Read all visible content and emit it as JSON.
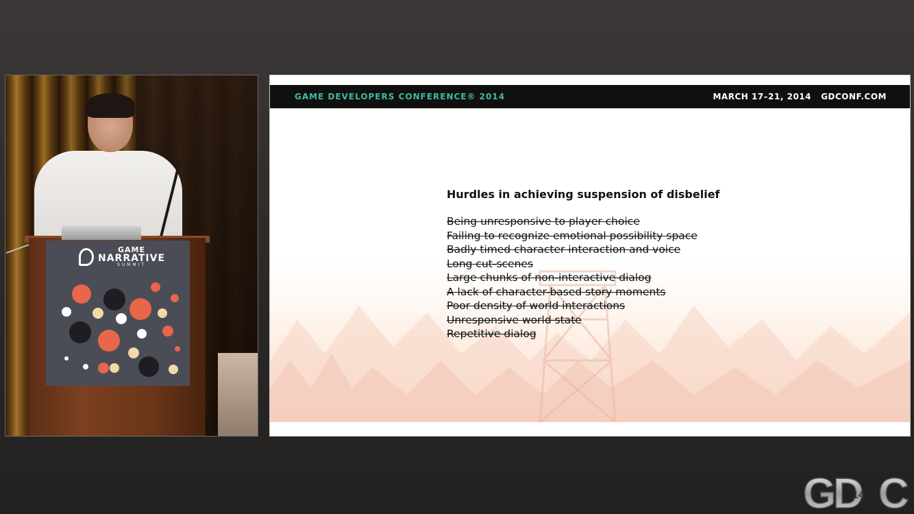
{
  "slide": {
    "header": {
      "conference": "GAME DEVELOPERS CONFERENCE® 2014",
      "dates": "MARCH 17–21, 2014",
      "website": "GDCONF.COM"
    },
    "title": "Hurdles in achieving suspension of disbelief",
    "items": [
      "Being unresponsive to player choice",
      "Failing to recognize emotional possibility space",
      "Badly timed character interaction and voice",
      "Long cut-scenes",
      "Large chunks of non-interactive dialog",
      "A lack of character-based story moments",
      "Poor density of world interactions",
      "Unresponsive world state",
      "Repetitive dialog"
    ]
  },
  "podium_sign": {
    "line1": "GAME",
    "line2": "NARRATIVE",
    "line3": "SUMMIT"
  },
  "watermark": {
    "letters": [
      "G",
      "D",
      "C"
    ],
    "year": "14"
  },
  "colors": {
    "header_bg": "#101010",
    "conference_accent": "#43b8a6",
    "page_bg": "#2b2928",
    "podium_sign_bg": "#4a4d55"
  }
}
